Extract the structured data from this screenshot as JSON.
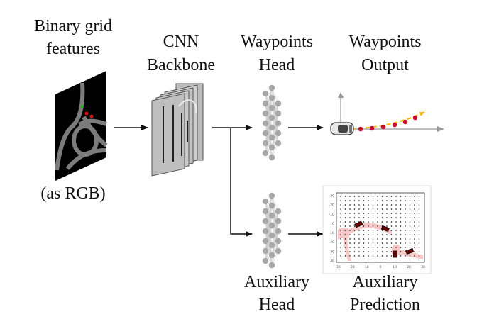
{
  "labels": {
    "input_line1": "Binary grid",
    "input_line2": "features",
    "input_caption": "(as RGB)",
    "cnn_line1": "CNN",
    "cnn_line2": "Backbone",
    "wp_head_line1": "Waypoints",
    "wp_head_line2": "Head",
    "wp_out_line1": "Waypoints",
    "wp_out_line2": "Output",
    "aux_head_line1": "Auxiliary",
    "aux_head_line2": "Head",
    "aux_pred_line1": "Auxiliary",
    "aux_pred_line2": "Prediction"
  },
  "aux_plot": {
    "x_ticks": [
      "-30",
      "-20",
      "-10",
      "0",
      "10",
      "20",
      "30"
    ],
    "y_ticks": [
      "-30",
      "-20",
      "-10",
      "0",
      "10",
      "20",
      "30",
      "40"
    ]
  },
  "colors": {
    "arrow": "#111111",
    "node": "#a8a8a8",
    "waypoint": "#c8102e",
    "trajectory": "#f5b800",
    "heat": "#f7b7b7"
  }
}
